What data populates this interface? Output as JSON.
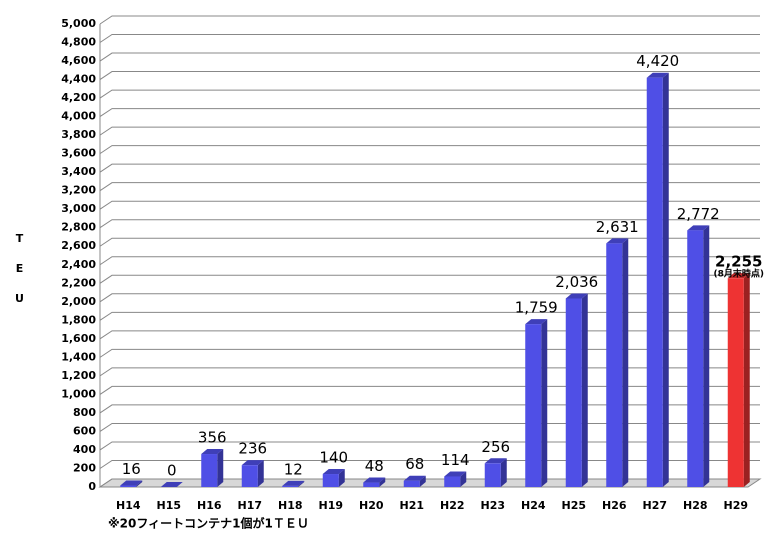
{
  "chart_data": {
    "type": "bar3d",
    "y_label": "T E U",
    "categories": [
      "H14",
      "H15",
      "H16",
      "H17",
      "H18",
      "H19",
      "H20",
      "H21",
      "H22",
      "H23",
      "H24",
      "H25",
      "H26",
      "H27",
      "H28",
      "H29"
    ],
    "values": [
      16,
      0,
      356,
      236,
      12,
      140,
      48,
      68,
      114,
      256,
      1759,
      2036,
      2631,
      4420,
      2772,
      2255
    ],
    "value_labels": [
      "16",
      "0",
      "356",
      "236",
      "12",
      "140",
      "48",
      "68",
      "114",
      "256",
      "1,759",
      "2,036",
      "2,631",
      "4,420",
      "2,772",
      "2,255"
    ],
    "colors": [
      "#4f4fe6",
      "#4f4fe6",
      "#4f4fe6",
      "#4f4fe6",
      "#4f4fe6",
      "#4f4fe6",
      "#4f4fe6",
      "#4f4fe6",
      "#4f4fe6",
      "#4f4fe6",
      "#4f4fe6",
      "#4f4fe6",
      "#4f4fe6",
      "#4f4fe6",
      "#4f4fe6",
      "#ee3333"
    ],
    "annotation": "(8月末時点)",
    "footnote": "※20フィートコンテナ1個が1ＴＥＵ",
    "ylim": [
      0,
      5000
    ],
    "yticks": [
      0,
      200,
      400,
      600,
      800,
      {
        "value": 1000,
        "label": "1,000"
      },
      {
        "value": 1200,
        "label": "1,200"
      },
      {
        "value": 1400,
        "label": "1,400"
      },
      {
        "value": 1600,
        "label": "1,600"
      },
      {
        "value": 1800,
        "label": "1,800"
      },
      {
        "value": 2000,
        "label": "2,000"
      },
      {
        "value": 2200,
        "label": "2,200"
      },
      {
        "value": 2400,
        "label": "2,400"
      },
      {
        "value": 2600,
        "label": "2,600"
      },
      {
        "value": 2800,
        "label": "2,800"
      },
      {
        "value": 3000,
        "label": "3,000"
      },
      {
        "value": 3200,
        "label": "3,200"
      },
      {
        "value": 3400,
        "label": "3,400"
      },
      {
        "value": 3600,
        "label": "3,600"
      },
      {
        "value": 3800,
        "label": "3,800"
      },
      {
        "value": 4000,
        "label": "4,000"
      },
      {
        "value": 4200,
        "label": "4,200"
      },
      {
        "value": 4400,
        "label": "4,400"
      },
      {
        "value": 4600,
        "label": "4,600"
      },
      {
        "value": 4800,
        "label": "4,800"
      },
      {
        "value": 5000,
        "label": "5,000"
      }
    ],
    "grid": true
  }
}
